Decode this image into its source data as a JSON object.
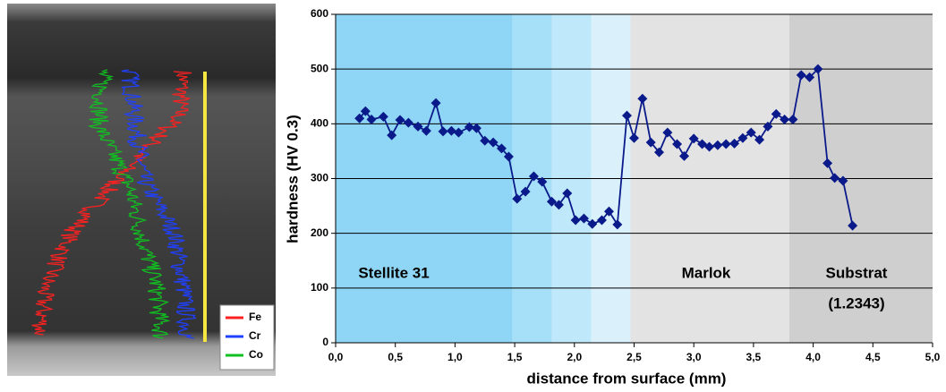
{
  "micrograph": {
    "legend": [
      {
        "name": "Fe",
        "color": "#ff2020"
      },
      {
        "name": "Cr",
        "color": "#2040ff"
      },
      {
        "name": "Co",
        "color": "#10c020"
      }
    ]
  },
  "chart_data": {
    "type": "line",
    "x_label": "distance from surface (mm)",
    "y_label": "hardness (HV 0.3)",
    "xlim": [
      0,
      5
    ],
    "ylim": [
      0,
      600
    ],
    "xticks": [
      {
        "value": 0,
        "label": "0,0"
      },
      {
        "value": 0.5,
        "label": "0,5"
      },
      {
        "value": 1,
        "label": "1,0"
      },
      {
        "value": 1.5,
        "label": "1,5"
      },
      {
        "value": 2,
        "label": "2,0"
      },
      {
        "value": 2.5,
        "label": "2,5"
      },
      {
        "value": 3,
        "label": "3,0"
      },
      {
        "value": 3.5,
        "label": "3,5"
      },
      {
        "value": 4,
        "label": "4,0"
      },
      {
        "value": 4.5,
        "label": "4,5"
      },
      {
        "value": 5,
        "label": "5,0"
      }
    ],
    "yticks": [
      0,
      100,
      200,
      300,
      400,
      500,
      600
    ],
    "grid": true,
    "bands": [
      {
        "start": 0,
        "end": 1.48,
        "color": "#8fd6f6"
      },
      {
        "start": 1.48,
        "end": 1.81,
        "color": "#a6dff8"
      },
      {
        "start": 1.81,
        "end": 2.14,
        "color": "#bfe8fa"
      },
      {
        "start": 2.14,
        "end": 2.47,
        "color": "#daf1fc"
      },
      {
        "start": 2.47,
        "end": 3.8,
        "color": "#e3e3e3"
      },
      {
        "start": 3.8,
        "end": 5,
        "color": "#cfcfcf"
      }
    ],
    "region_labels": [
      "Stellite 31",
      "Marlok",
      "Substrat",
      "(1.2343)"
    ],
    "series": [
      {
        "color": "#0a1a8a",
        "x": [
          0.2,
          0.25,
          0.3,
          0.4,
          0.47,
          0.54,
          0.61,
          0.69,
          0.76,
          0.84,
          0.9,
          0.97,
          1.03,
          1.12,
          1.18,
          1.25,
          1.32,
          1.39,
          1.45,
          1.52,
          1.59,
          1.66,
          1.73,
          1.81,
          1.87,
          1.94,
          2.01,
          2.08,
          2.15,
          2.23,
          2.29,
          2.36,
          2.44,
          2.5,
          2.57,
          2.64,
          2.71,
          2.78,
          2.86,
          2.92,
          3.0,
          3.07,
          3.13,
          3.2,
          3.27,
          3.34,
          3.41,
          3.48,
          3.55,
          3.62,
          3.69,
          3.76,
          3.83,
          3.9,
          3.97,
          4.04,
          4.12,
          4.18,
          4.25,
          4.33
        ],
        "values": [
          410,
          423,
          408,
          413,
          379,
          407,
          402,
          395,
          387,
          438,
          386,
          387,
          384,
          394,
          392,
          369,
          366,
          355,
          340,
          263,
          276,
          304,
          294,
          258,
          252,
          273,
          224,
          227,
          217,
          224,
          240,
          216,
          415,
          374,
          446,
          366,
          348,
          384,
          363,
          341,
          373,
          363,
          358,
          361,
          363,
          364,
          374,
          384,
          371,
          395,
          418,
          408,
          408,
          489,
          485,
          500,
          328,
          301,
          296,
          214
        ]
      }
    ]
  }
}
